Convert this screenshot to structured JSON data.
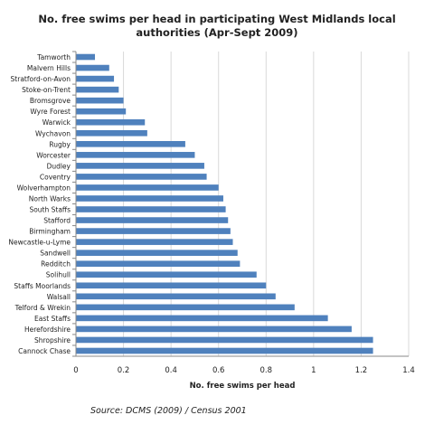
{
  "chart_data": {
    "type": "bar",
    "orientation": "horizontal",
    "title": "No. free swims per head in participating West Midlands local authorities (Apr-Sept 2009)",
    "xlabel": "No. free swims per head",
    "ylabel": "",
    "xlim": [
      0,
      1.4
    ],
    "xticks": [
      "0",
      "0.2",
      "0.4",
      "0.6",
      "0.8",
      "1",
      "1.2",
      "1.4"
    ],
    "grid": "vertical",
    "legend": "none",
    "bar_color": "#4F81BD",
    "categories": [
      "Tamworth",
      "Malvern Hills",
      "Stratford-on-Avon",
      "Stoke-on-Trent",
      "Bromsgrove",
      "Wyre Forest",
      "Warwick",
      "Wychavon",
      "Rugby",
      "Worcester",
      "Dudley",
      "Coventry",
      "Wolverhampton",
      "North Warks",
      "South Staffs",
      "Stafford",
      "Birmingham",
      "Newcastle-u-Lyme",
      "Sandwell",
      "Redditch",
      "Solihull",
      "Staffs Moorlands",
      "Walsall",
      "Telford & Wrekin",
      "East Staffs",
      "Herefordshire",
      "Shropshire",
      "Cannock Chase"
    ],
    "values": [
      0.08,
      0.14,
      0.16,
      0.18,
      0.2,
      0.21,
      0.29,
      0.3,
      0.46,
      0.5,
      0.54,
      0.55,
      0.6,
      0.62,
      0.63,
      0.64,
      0.65,
      0.66,
      0.68,
      0.69,
      0.76,
      0.8,
      0.84,
      0.92,
      1.06,
      1.16,
      1.25,
      1.25
    ]
  },
  "source_note": "Source: DCMS (2009) / Census 2001"
}
